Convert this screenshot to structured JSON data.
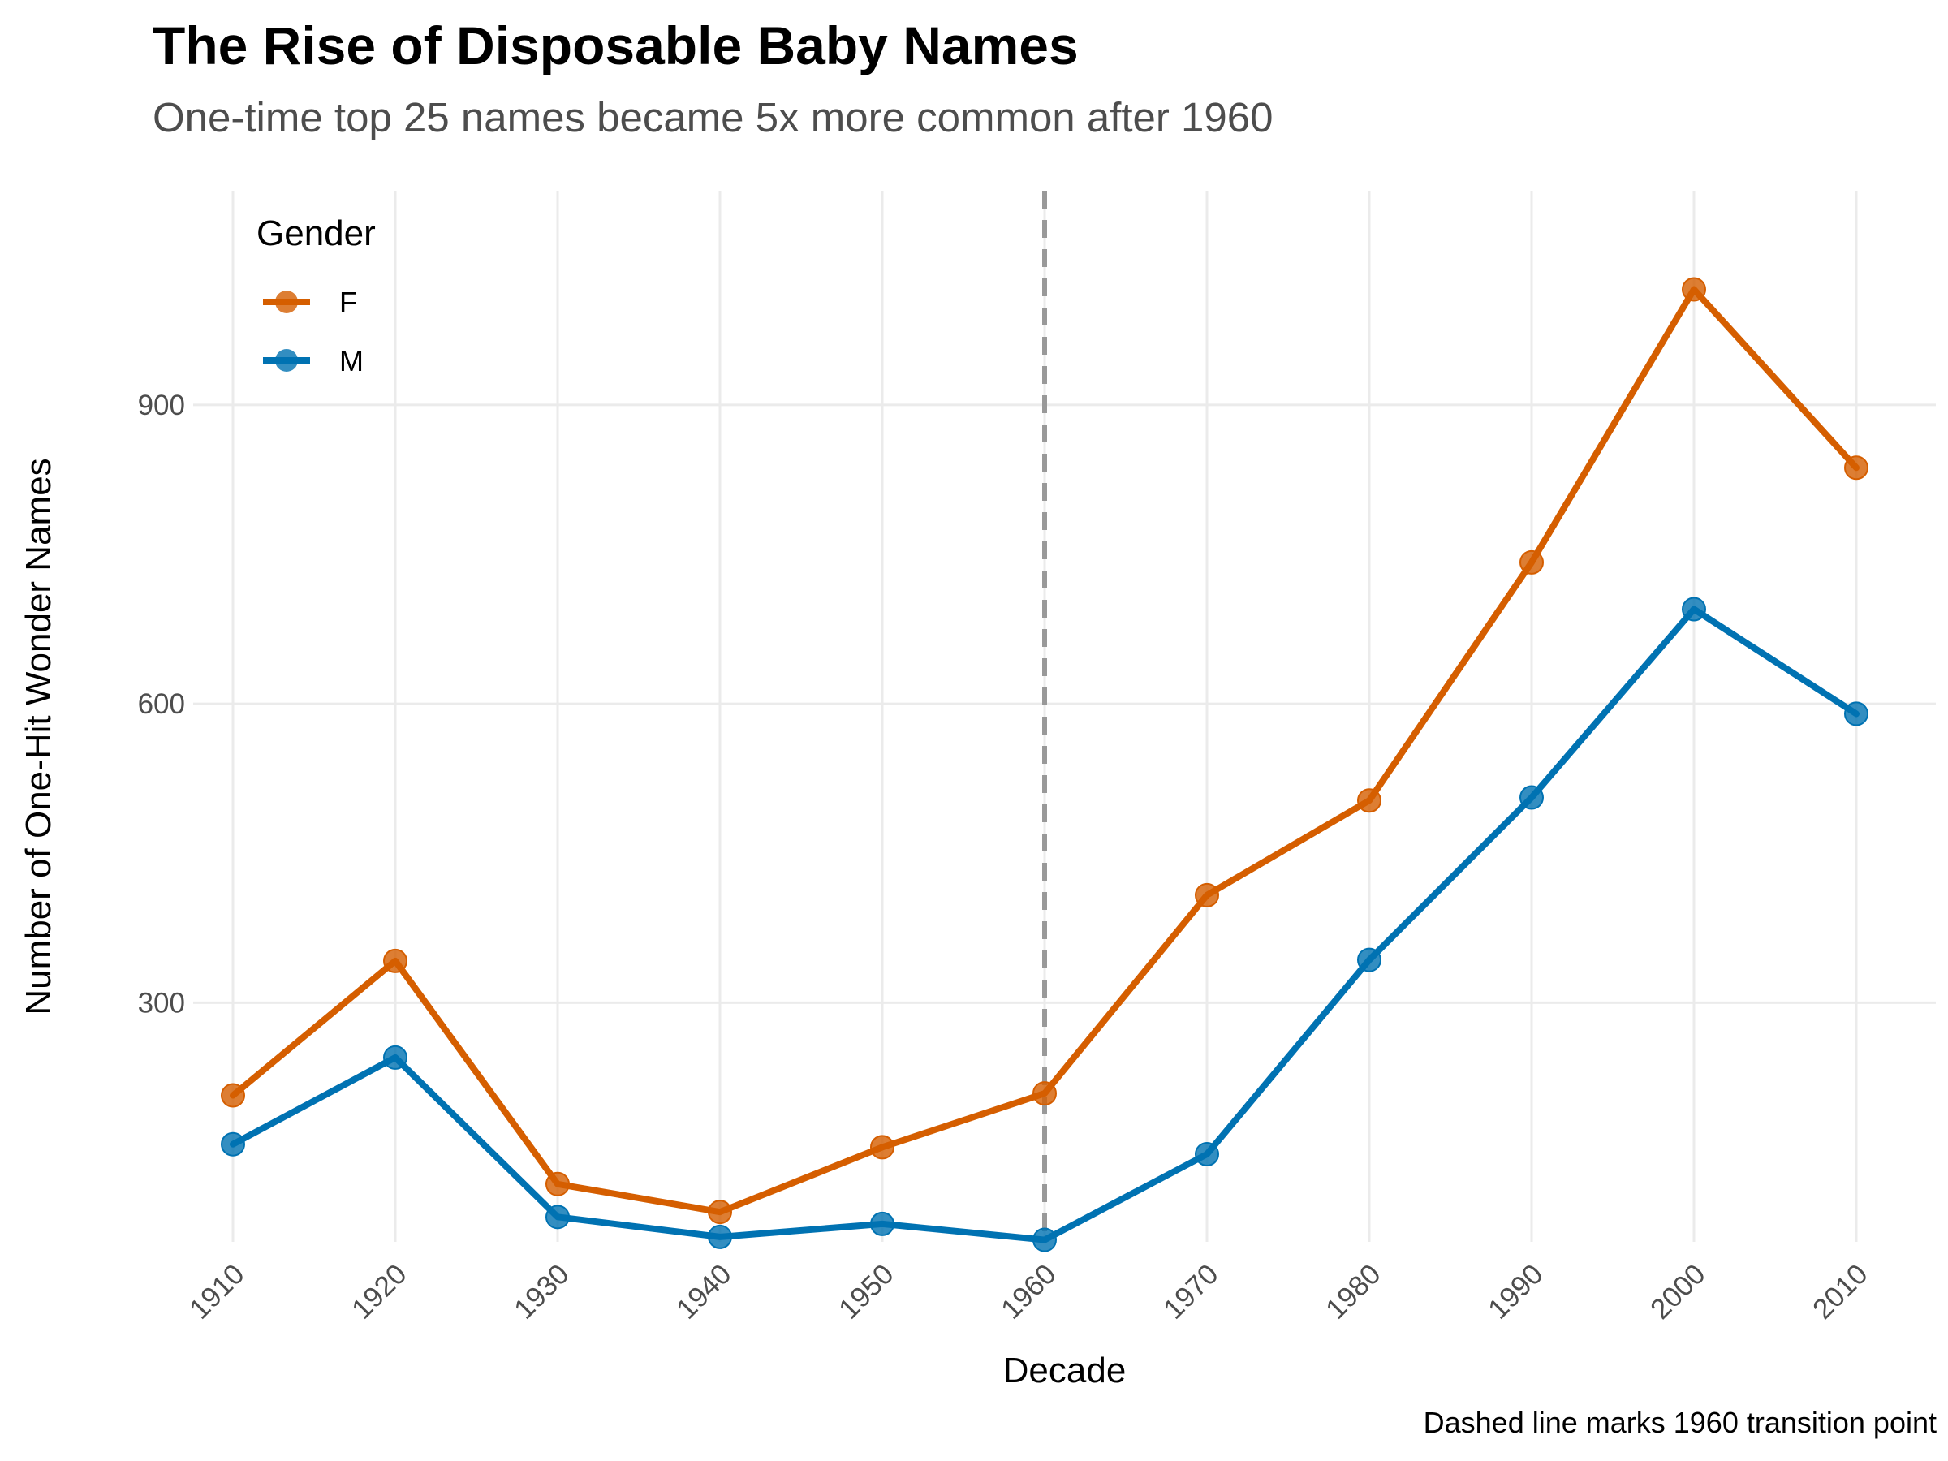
{
  "chart_data": {
    "type": "line",
    "title": "The Rise of Disposable Baby Names",
    "subtitle": "One-time top 25 names became 5x more common after 1960",
    "caption": "Dashed line marks 1960 transition point",
    "xlabel": "Decade",
    "ylabel": "Number of One-Hit Wonder Names",
    "x": [
      "1910",
      "1920",
      "1930",
      "1940",
      "1950",
      "1960",
      "1970",
      "1980",
      "1990",
      "2000",
      "2010"
    ],
    "y_ticks": [
      "300",
      "600",
      "900"
    ],
    "ylim": [
      60,
      1115
    ],
    "reference_line": {
      "x": "1960",
      "style": "dashed",
      "color": "#999999"
    },
    "legend": {
      "title": "Gender",
      "placement": "top-left"
    },
    "grid": true,
    "series": [
      {
        "name": "F",
        "color": "#D55E00",
        "values": [
          207,
          342,
          118,
          90,
          155,
          209,
          408,
          503,
          742,
          1016,
          837
        ]
      },
      {
        "name": "M",
        "color": "#0072B2",
        "values": [
          158,
          245,
          85,
          65,
          78,
          62,
          148,
          343,
          506,
          695,
          590
        ]
      }
    ]
  }
}
